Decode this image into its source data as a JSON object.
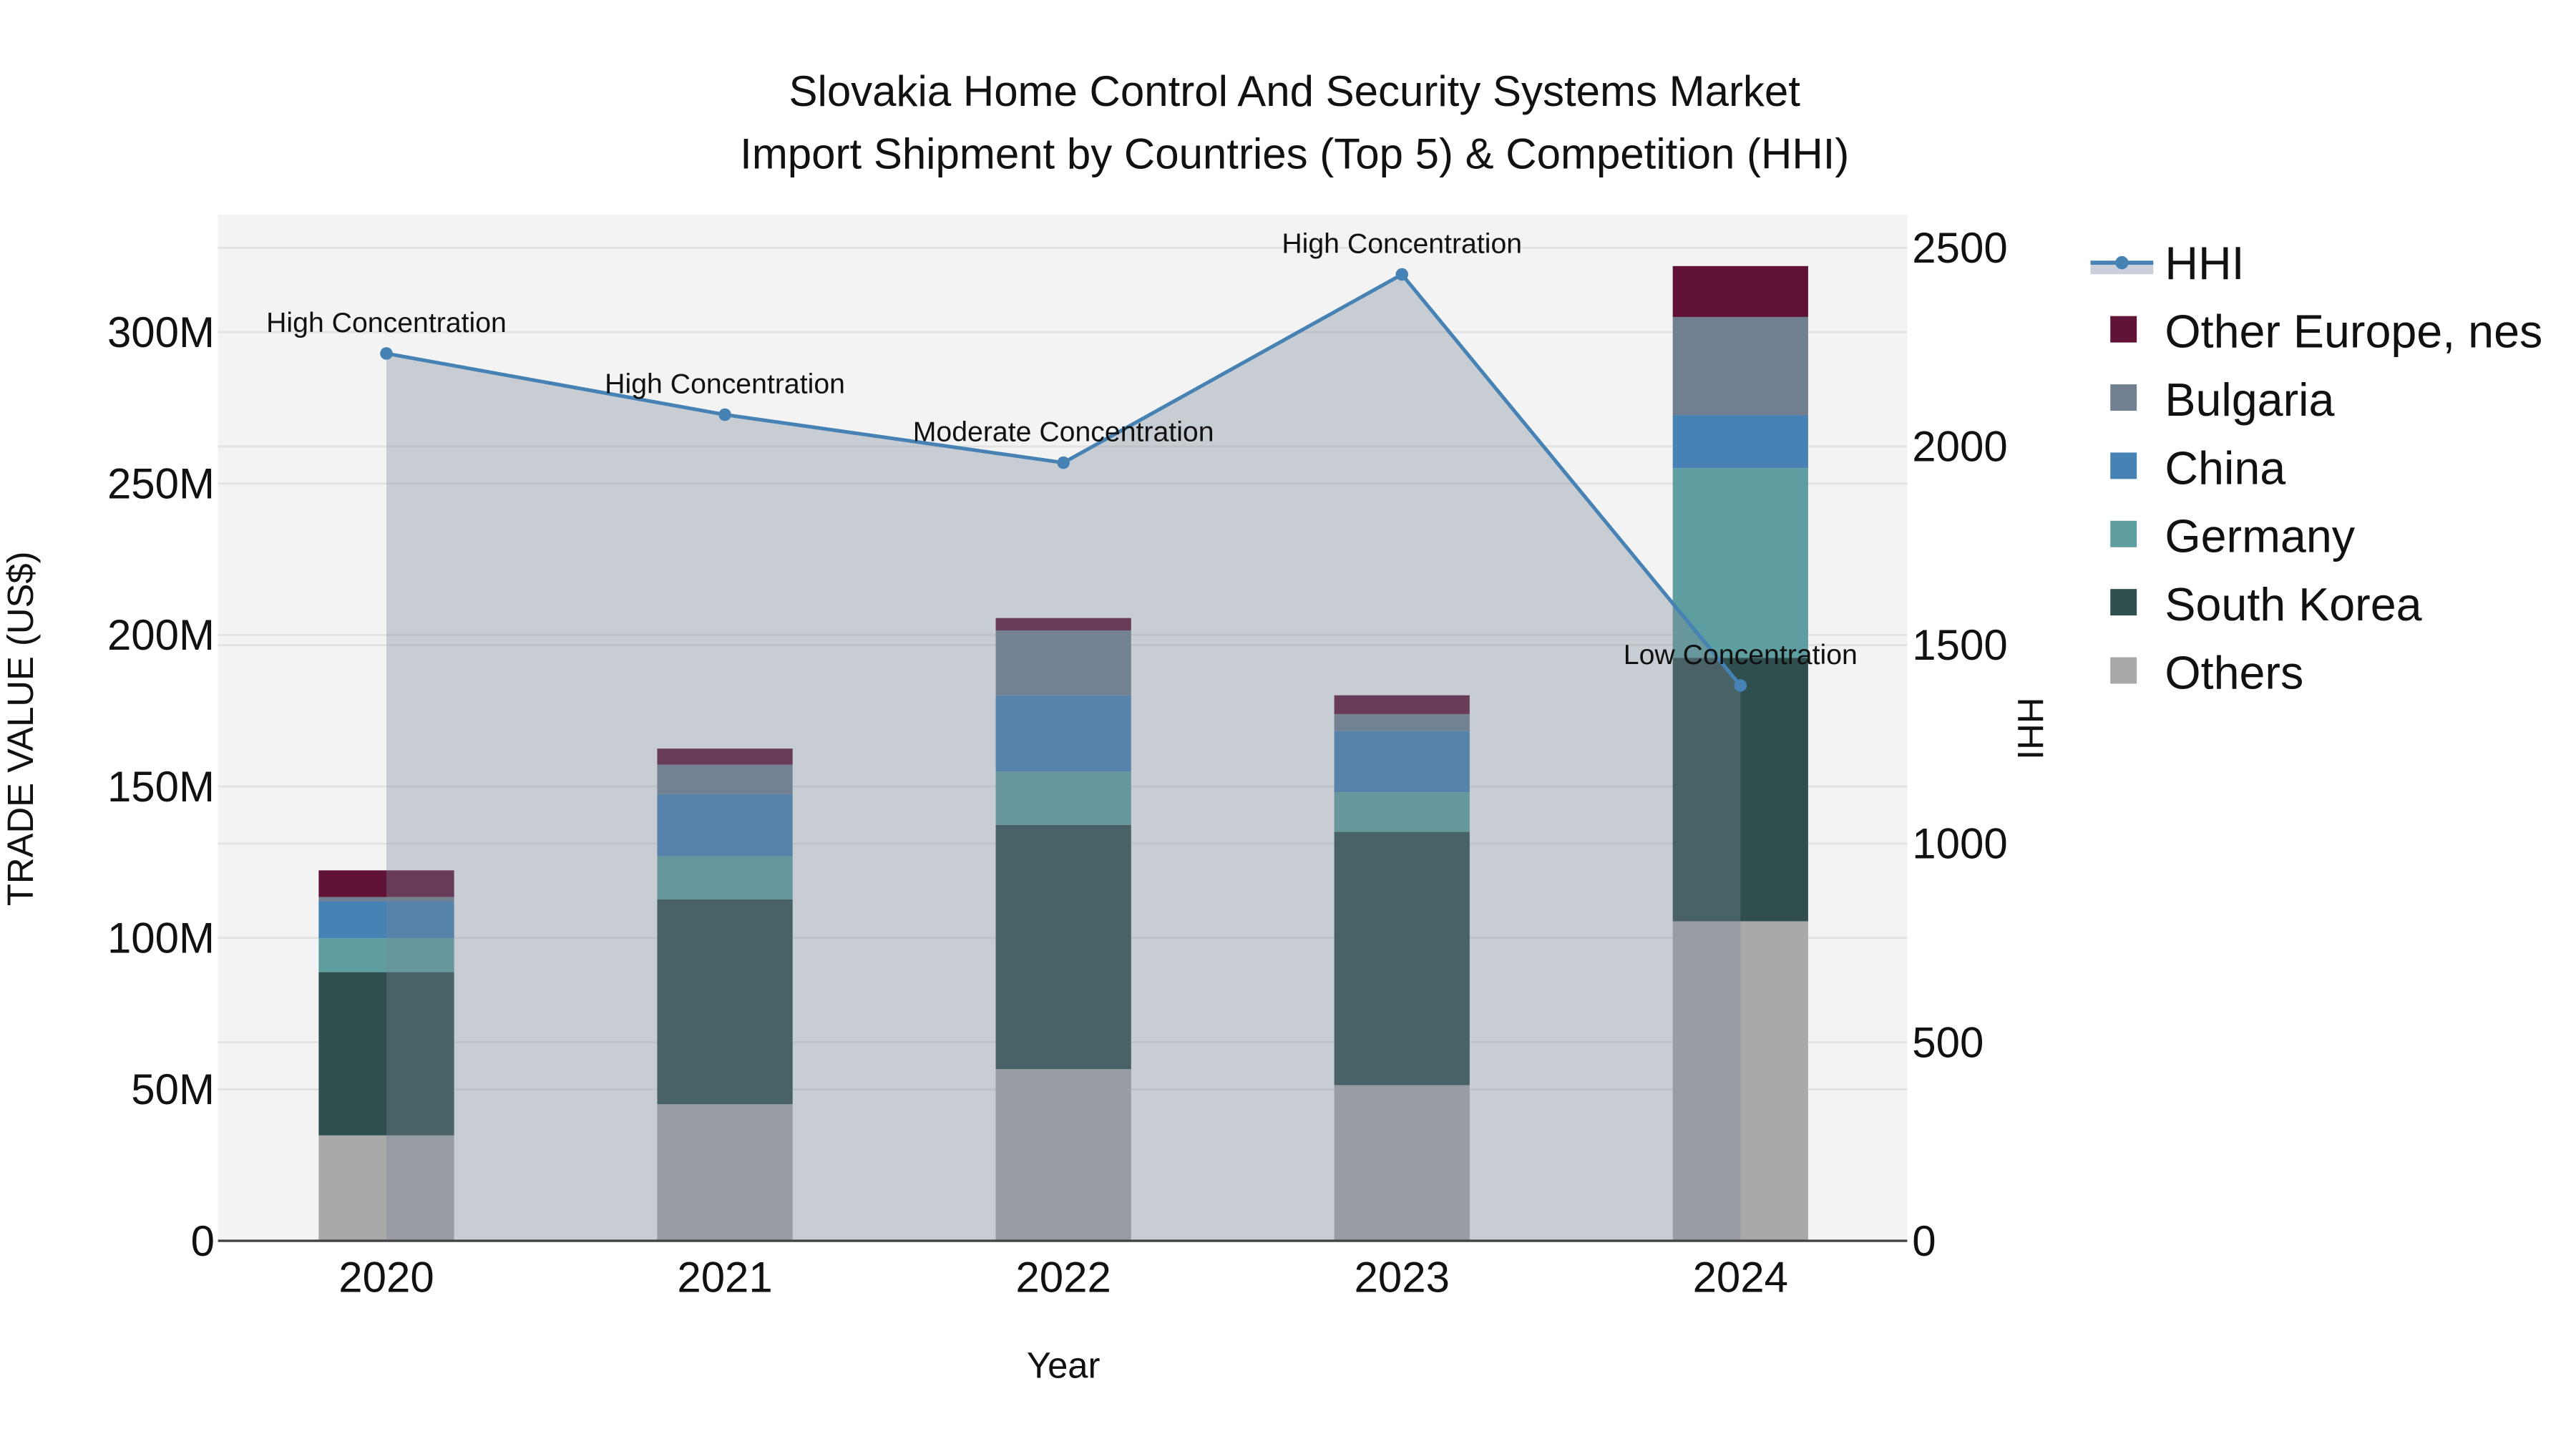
{
  "chart_data": {
    "type": "bar",
    "subtype": "stacked-bar-with-line-secondary-axis",
    "title": "Slovakia Home Control And Security Systems Market",
    "subtitle": "Import Shipment by Countries (Top 5) & Competition (HHI)",
    "xlabel": "Year",
    "ylabel": "TRADE VALUE (US$)",
    "y2label": "HHI",
    "categories": [
      "2020",
      "2021",
      "2022",
      "2023",
      "2024"
    ],
    "ylim": [
      0,
      338
    ],
    "y_ticks": [
      0,
      50,
      100,
      150,
      200,
      250,
      300
    ],
    "y_tick_labels": [
      "0",
      "50M",
      "100M",
      "150M",
      "200M",
      "250M",
      "300M"
    ],
    "y2lim": [
      0,
      2580
    ],
    "y2_ticks": [
      0,
      500,
      1000,
      1500,
      2000,
      2500
    ],
    "y2_tick_labels": [
      "0",
      "500",
      "1000",
      "1500",
      "2000",
      "2500"
    ],
    "units": "US$ millions",
    "series": [
      {
        "name": "Others",
        "color": "#A9A9A9",
        "values": [
          34.8,
          45.1,
          56.7,
          51.4,
          105.5
        ]
      },
      {
        "name": "South Korea",
        "color": "#2F4F4F",
        "values": [
          53.9,
          67.6,
          80.6,
          83.6,
          87.0
        ]
      },
      {
        "name": "Germany",
        "color": "#5F9EA0",
        "values": [
          11.2,
          14.2,
          17.6,
          13.1,
          62.6
        ]
      },
      {
        "name": "China",
        "color": "#4682B4",
        "values": [
          12.2,
          20.5,
          25.2,
          20.3,
          17.4
        ]
      },
      {
        "name": "Bulgaria",
        "color": "#708090",
        "values": [
          1.4,
          9.8,
          21.4,
          5.5,
          32.5
        ]
      },
      {
        "name": "Other Europe, nes",
        "color": "#601336",
        "values": [
          8.8,
          5.3,
          4.1,
          6.2,
          16.8
        ]
      }
    ],
    "line_series": {
      "name": "HHI",
      "axis": "y2",
      "color": "#4682B4",
      "fill": "rgba(119,136,153,0.35)",
      "values": [
        2234,
        2080,
        1959,
        2433,
        1398
      ],
      "annotations": [
        "High Concentration",
        "High Concentration",
        "Moderate Concentration",
        "High Concentration",
        "Low Concentration"
      ]
    },
    "legend": {
      "position": "right",
      "entries": [
        "HHI",
        "Other Europe, nes",
        "Bulgaria",
        "China",
        "Germany",
        "South Korea",
        "Others"
      ]
    },
    "grid": true,
    "plot_background": "#F3F3F3"
  }
}
